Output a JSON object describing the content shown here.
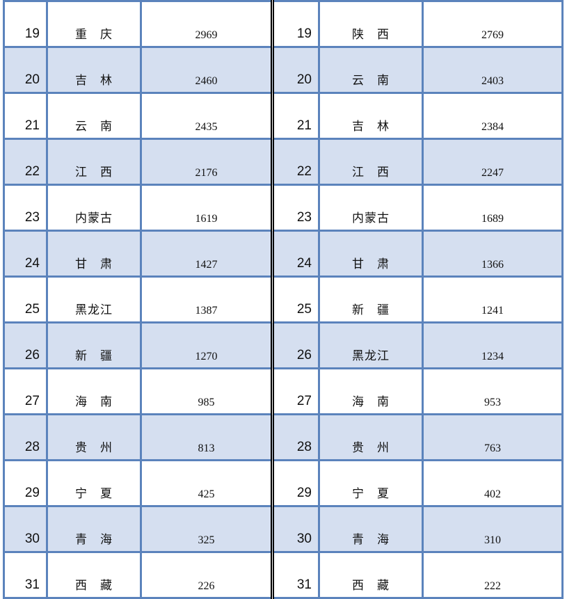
{
  "rows": [
    {
      "rank_a": "19",
      "name_a": "重　庆",
      "value_a": "2969",
      "rank_b": "19",
      "name_b": "陕　西",
      "value_b": "2769"
    },
    {
      "rank_a": "20",
      "name_a": "吉　林",
      "value_a": "2460",
      "rank_b": "20",
      "name_b": "云　南",
      "value_b": "2403"
    },
    {
      "rank_a": "21",
      "name_a": "云　南",
      "value_a": "2435",
      "rank_b": "21",
      "name_b": "吉　林",
      "value_b": "2384"
    },
    {
      "rank_a": "22",
      "name_a": "江　西",
      "value_a": "2176",
      "rank_b": "22",
      "name_b": "江　西",
      "value_b": "2247"
    },
    {
      "rank_a": "23",
      "name_a": "内蒙古",
      "value_a": "1619",
      "rank_b": "23",
      "name_b": "内蒙古",
      "value_b": "1689"
    },
    {
      "rank_a": "24",
      "name_a": "甘　肃",
      "value_a": "1427",
      "rank_b": "24",
      "name_b": "甘　肃",
      "value_b": "1366"
    },
    {
      "rank_a": "25",
      "name_a": "黑龙江",
      "value_a": "1387",
      "rank_b": "25",
      "name_b": "新　疆",
      "value_b": "1241"
    },
    {
      "rank_a": "26",
      "name_a": "新　疆",
      "value_a": "1270",
      "rank_b": "26",
      "name_b": "黑龙江",
      "value_b": "1234"
    },
    {
      "rank_a": "27",
      "name_a": "海　南",
      "value_a": "985",
      "rank_b": "27",
      "name_b": "海　南",
      "value_b": "953"
    },
    {
      "rank_a": "28",
      "name_a": "贵　州",
      "value_a": "813",
      "rank_b": "28",
      "name_b": "贵　州",
      "value_b": "763"
    },
    {
      "rank_a": "29",
      "name_a": "宁　夏",
      "value_a": "425",
      "rank_b": "29",
      "name_b": "宁　夏",
      "value_b": "402"
    },
    {
      "rank_a": "30",
      "name_a": "青　海",
      "value_a": "325",
      "rank_b": "30",
      "name_b": "青　海",
      "value_b": "310"
    },
    {
      "rank_a": "31",
      "name_a": "西　藏",
      "value_a": "226",
      "rank_b": "31",
      "name_b": "西　藏",
      "value_b": "222"
    }
  ],
  "colors": {
    "border": "#5b83bc",
    "alt_row": "#d5dff0"
  }
}
